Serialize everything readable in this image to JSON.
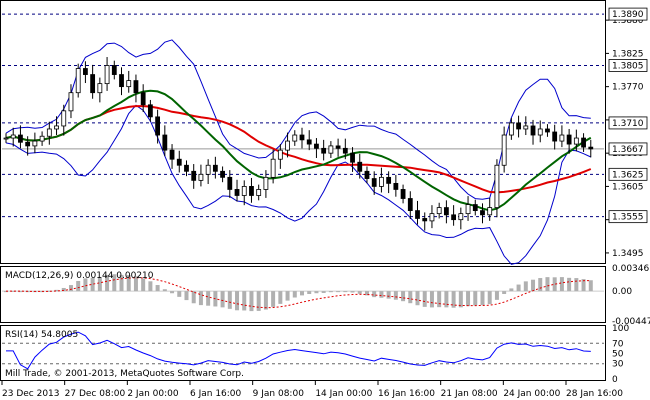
{
  "chart_data": {
    "type": "candlestick",
    "symbol_panel": {
      "price_ticks": [
        "1.3880",
        "1.3825",
        "1.3770",
        "1.3715",
        "1.3660",
        "1.3605",
        "1.3550",
        "1.3495"
      ],
      "level_boxes": [
        "1.3890",
        "1.3805",
        "1.3710",
        "1.3667",
        "1.3625",
        "1.3555"
      ],
      "current_price": "1.3667",
      "ylim": [
        1.348,
        1.391
      ]
    },
    "horizontal_levels": [
      1.389,
      1.3805,
      1.371,
      1.3625,
      1.3555
    ],
    "x_labels": [
      "23 Dec 2013",
      "27 Dec 08:00",
      "2 Jan 00:00",
      "6 Jan 16:00",
      "9 Jan 08:00",
      "14 Jan 00:00",
      "16 Jan 16:00",
      "21 Jan 08:00",
      "24 Jan 00:00",
      "28 Jan 16:00"
    ],
    "close_series": [
      1.3685,
      1.369,
      1.3678,
      1.3672,
      1.368,
      1.3688,
      1.37,
      1.3705,
      1.373,
      1.376,
      1.38,
      1.379,
      1.376,
      1.3775,
      1.3805,
      1.379,
      1.377,
      1.378,
      1.376,
      1.374,
      1.372,
      1.369,
      1.3665,
      1.365,
      1.364,
      1.363,
      1.3615,
      1.3625,
      1.364,
      1.363,
      1.362,
      1.36,
      1.359,
      1.3605,
      1.359,
      1.36,
      1.362,
      1.365,
      1.3665,
      1.368,
      1.369,
      1.3682,
      1.3675,
      1.3668,
      1.366,
      1.3672,
      1.3668,
      1.366,
      1.3645,
      1.363,
      1.3618,
      1.3605,
      1.362,
      1.361,
      1.36,
      1.3585,
      1.3565,
      1.3552,
      1.3548,
      1.356,
      1.357,
      1.3558,
      1.355,
      1.356,
      1.3575,
      1.3565,
      1.3558,
      1.357,
      1.364,
      1.369,
      1.371,
      1.37,
      1.3705,
      1.369,
      1.37,
      1.3695,
      1.368,
      1.369,
      1.3675,
      1.3685,
      1.367,
      1.3667
    ],
    "macd": {
      "label": "MACD(12,26,9)",
      "macd_value": "0.00144",
      "signal_value": "0.00210",
      "ticks": [
        "0.00346",
        "0.00",
        "-0.00447"
      ]
    },
    "rsi": {
      "label": "RSI(14)",
      "value": "54.8005",
      "ticks": [
        "100",
        "70",
        "50",
        "30",
        "0"
      ]
    },
    "copyright": "Mill Trade, © 2001-2013, MetaQuotes Software Corp.",
    "colors": {
      "ma_green": "#006400",
      "ma_red": "#e00000",
      "bollinger": "#0000cc",
      "macd_hist": "#b0b0b0",
      "macd_signal": "#e00000",
      "rsi_line": "#0000ff",
      "level_line": "#000080"
    }
  }
}
